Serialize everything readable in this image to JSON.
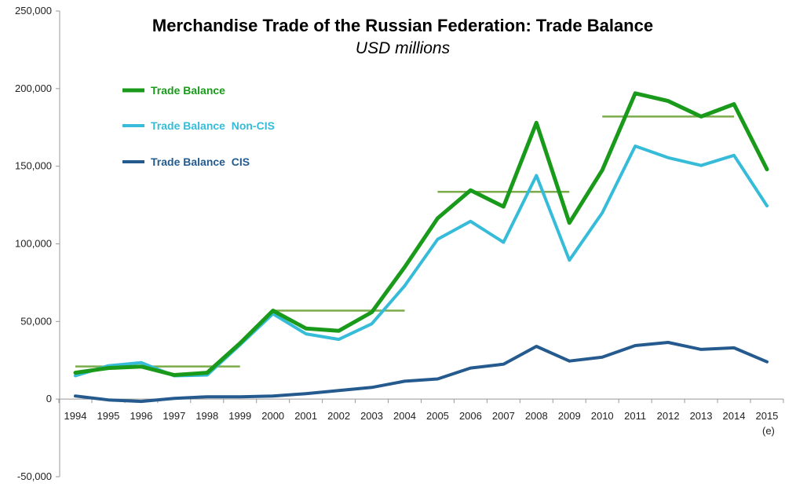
{
  "chart_data": {
    "type": "line",
    "title": "Merchandise Trade of the Russian Federation: Trade Balance",
    "subtitle": "USD millions",
    "categories": [
      "1994",
      "1995",
      "1996",
      "1997",
      "1998",
      "1999",
      "2000",
      "2001",
      "2002",
      "2003",
      "2004",
      "2005",
      "2006",
      "2007",
      "2008",
      "2009",
      "2010",
      "2011",
      "2012",
      "2013",
      "2014",
      "2015"
    ],
    "category_note": {
      "index": 21,
      "text": "(e)"
    },
    "ylim": [
      -50000,
      250000
    ],
    "yticks": [
      -50000,
      0,
      50000,
      100000,
      150000,
      200000,
      250000
    ],
    "ytick_labels": [
      "-50,000",
      "0",
      "50,000",
      "100,000",
      "150,000",
      "200,000",
      "250,000"
    ],
    "legend_position": "top-left",
    "series": [
      {
        "name": "Trade Balance",
        "color": "#1a9a1a",
        "values": [
          17000,
          20000,
          21000,
          15500,
          17000,
          36000,
          57000,
          45500,
          44000,
          56000,
          85000,
          116500,
          134500,
          124000,
          178000,
          113500,
          147500,
          197000,
          192000,
          182000,
          190000,
          148000
        ]
      },
      {
        "name": "Trade Balance  Non-CIS",
        "color": "#36bcd8",
        "values": [
          15000,
          21500,
          23500,
          15000,
          15500,
          35000,
          55000,
          42000,
          38500,
          48500,
          73000,
          103000,
          114500,
          101000,
          144000,
          89500,
          120000,
          163000,
          155500,
          150500,
          157000,
          124500
        ]
      },
      {
        "name": "Trade Balance  CIS",
        "color": "#245a8e",
        "values": [
          2000,
          -500,
          -1500,
          500,
          1500,
          1500,
          2000,
          3500,
          5500,
          7500,
          11500,
          13000,
          20000,
          22500,
          34000,
          24500,
          27000,
          34500,
          36500,
          32000,
          33000,
          24000
        ]
      }
    ],
    "averages": {
      "color": "#7cab4a",
      "segments": [
        {
          "from": "1994",
          "to": "1999",
          "value": 21000
        },
        {
          "from": "2000",
          "to": "2004",
          "value": 57000
        },
        {
          "from": "2005",
          "to": "2009",
          "value": 133500
        },
        {
          "from": "2010",
          "to": "2014",
          "value": 182000
        }
      ]
    }
  }
}
